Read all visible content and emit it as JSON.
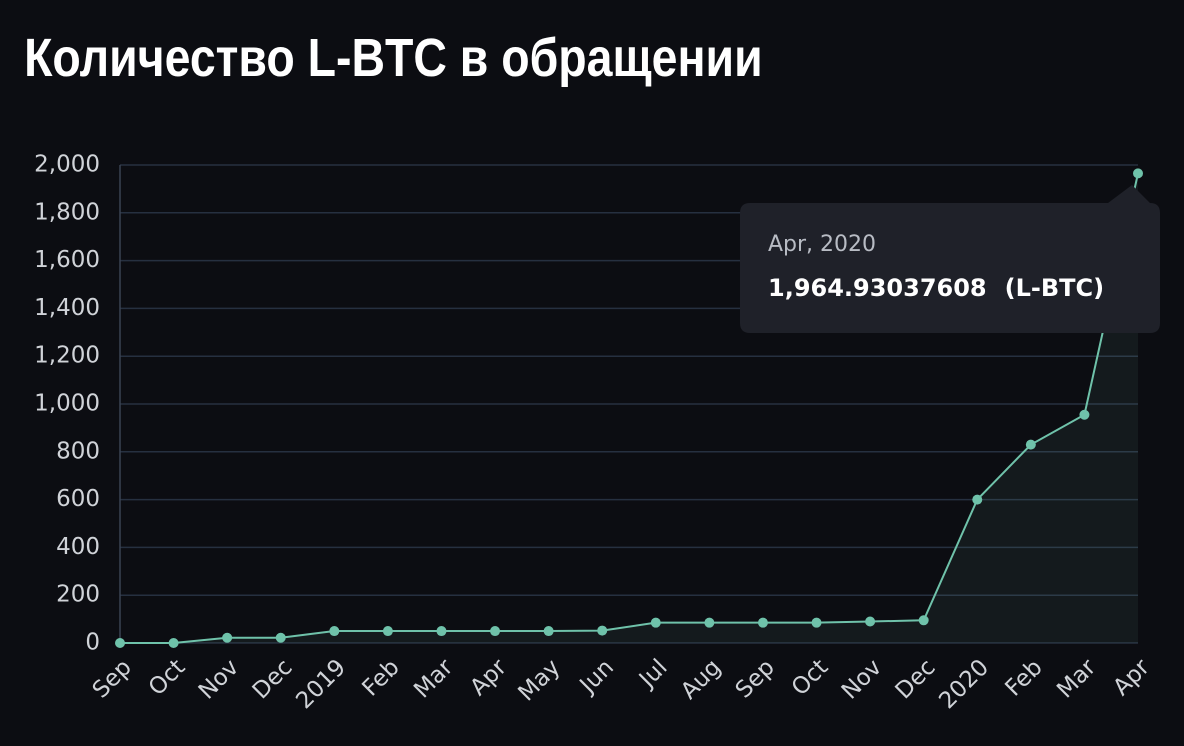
{
  "chart_data": {
    "type": "line",
    "title": "Количество L-BTC в обращении",
    "categories": [
      "Sep",
      "Oct",
      "Nov",
      "Dec",
      "2019",
      "Feb",
      "Mar",
      "Apr",
      "May",
      "Jun",
      "Jul",
      "Aug",
      "Sep",
      "Oct",
      "Nov",
      "Dec",
      "2020",
      "Feb",
      "Mar",
      "Apr"
    ],
    "series": [
      {
        "name": "L-BTC",
        "color": "#6fc2aa",
        "values": [
          0,
          0,
          22,
          22,
          50,
          50,
          50,
          50,
          50,
          52,
          85,
          85,
          85,
          85,
          90,
          95,
          600,
          830,
          955,
          1964.93037608
        ]
      }
    ],
    "ylim": [
      0,
      2000
    ],
    "yticks": [
      0,
      200,
      400,
      600,
      800,
      {
        "value": 1000,
        "label": "1,000"
      },
      {
        "value": 1200,
        "label": "1,200"
      },
      {
        "value": 1400,
        "label": "1,400"
      },
      {
        "value": 1600,
        "label": "1,600"
      },
      {
        "value": 1800,
        "label": "1,800"
      },
      {
        "value": 2000,
        "label": "2,000"
      }
    ],
    "grid": true,
    "tooltip": {
      "title": "Apr, 2020",
      "value": "1,964.93037608",
      "unit": "(L-BTC)"
    }
  }
}
